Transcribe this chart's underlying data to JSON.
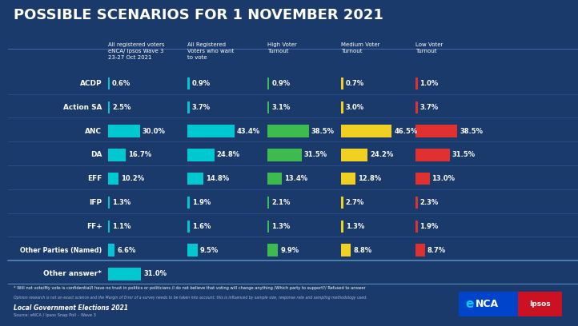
{
  "title": "POSSIBLE SCENARIOS FOR 1 NOVEMBER 2021",
  "bg_color": "#1a3a6b",
  "title_color": "#ffffff",
  "col_headers": [
    "All registered voters\neNCA/ Ipsos Wave 3\n23-27 Oct 2021",
    "All Registered\nVoters who want\nto vote",
    "High Voter\nTurnout",
    "Medium Voter\nTurnout",
    "Low Voter\nTurnout"
  ],
  "parties": [
    "ACDP",
    "Action SA",
    "ANC",
    "DA",
    "EFF",
    "IFP",
    "FF+",
    "Other Parties (Named)",
    "Other answer*"
  ],
  "data": {
    "ACDP": [
      0.6,
      0.9,
      0.9,
      0.7,
      1.0
    ],
    "Action SA": [
      2.5,
      3.7,
      3.1,
      3.0,
      3.7
    ],
    "ANC": [
      30.0,
      43.4,
      38.5,
      46.5,
      38.5
    ],
    "DA": [
      16.7,
      24.8,
      31.5,
      24.2,
      31.5
    ],
    "EFF": [
      10.2,
      14.8,
      13.4,
      12.8,
      13.0
    ],
    "IFP": [
      1.3,
      1.9,
      2.1,
      2.7,
      2.3
    ],
    "FF+": [
      1.1,
      1.6,
      1.3,
      1.3,
      1.9
    ],
    "Other Parties (Named)": [
      6.6,
      9.5,
      9.9,
      8.8,
      8.7
    ],
    "Other answer*": [
      31.0,
      null,
      null,
      null,
      null
    ]
  },
  "bar_colors": [
    "#00c8d0",
    "#00c8d0",
    "#3dbb4e",
    "#f0d020",
    "#e03030"
  ],
  "footer_note1": "* Will not vote/My vote is confidential/I have no trust in politics or politicians /I do not believe that voting will change anything /Which party to support?/ Refused to answer",
  "footer_note2": "Opinion research is not an exact science and the Margin of Error of a survey needs to be taken into account; this is influenced by sample size, response rate and sampling methodology used.",
  "footer_source": "Local Government Elections 2021",
  "footer_source2": "Source: eNCA / Ipsos Snap Poll – Wave 3"
}
